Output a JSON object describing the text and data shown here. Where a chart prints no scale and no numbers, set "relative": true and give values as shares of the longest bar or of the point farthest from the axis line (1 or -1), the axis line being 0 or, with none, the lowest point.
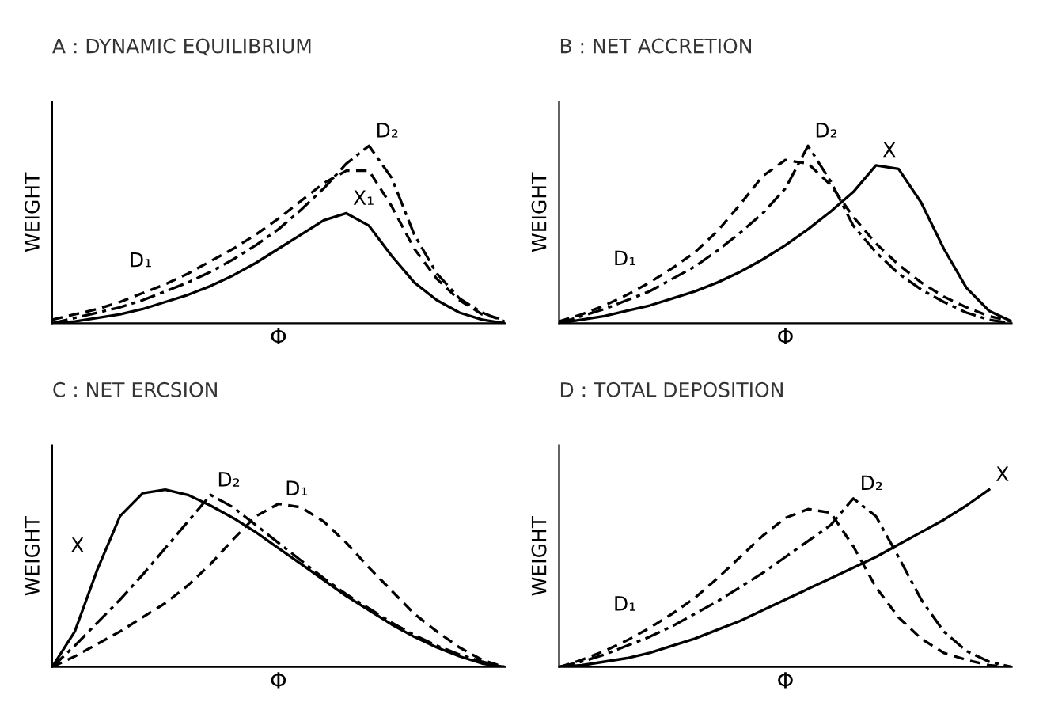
{
  "chart_data": [
    {
      "type": "line",
      "title": "A : DYNAMIC EQUILIBRIUM",
      "xlabel": "Φ",
      "ylabel": "WEIGHT",
      "relative": true,
      "tick_labels": false,
      "grid": false,
      "legend": false,
      "categories": [
        null,
        null,
        null,
        null,
        null,
        null,
        null,
        null,
        null,
        null,
        null,
        null,
        null,
        null,
        null,
        null,
        null,
        null,
        null,
        null,
        null
      ],
      "series": [
        {
          "name": "D₁",
          "color": "#000000",
          "line_style": "dashed",
          "values": [
            0.02,
            0.05,
            0.08,
            0.12,
            0.17,
            0.22,
            0.28,
            0.35,
            0.42,
            0.5,
            0.59,
            0.69,
            0.79,
            0.86,
            0.86,
            0.66,
            0.42,
            0.25,
            0.13,
            0.05,
            0.02
          ]
        },
        {
          "name": "D₂",
          "color": "#000000",
          "line_style": "dashdot",
          "values": [
            0,
            0.03,
            0.06,
            0.09,
            0.13,
            0.18,
            0.23,
            0.29,
            0.36,
            0.44,
            0.53,
            0.64,
            0.76,
            0.9,
            1.0,
            0.82,
            0.5,
            0.28,
            0.14,
            0.06,
            0.01
          ]
        },
        {
          "name": "X₁",
          "color": "#000000",
          "line_style": "solid",
          "values": [
            0,
            0.01,
            0.03,
            0.05,
            0.08,
            0.12,
            0.16,
            0.21,
            0.27,
            0.34,
            0.42,
            0.5,
            0.58,
            0.62,
            0.55,
            0.38,
            0.23,
            0.13,
            0.06,
            0.02,
            0
          ]
        }
      ]
    },
    {
      "type": "line",
      "title": "B : NET ACCRETION",
      "xlabel": "Φ",
      "ylabel": "WEIGHT",
      "relative": true,
      "tick_labels": false,
      "grid": false,
      "legend": false,
      "categories": [
        null,
        null,
        null,
        null,
        null,
        null,
        null,
        null,
        null,
        null,
        null,
        null,
        null,
        null,
        null,
        null,
        null,
        null,
        null,
        null,
        null
      ],
      "series": [
        {
          "name": "D₁",
          "color": "#000000",
          "line_style": "dashed",
          "values": [
            0.01,
            0.05,
            0.1,
            0.16,
            0.23,
            0.31,
            0.4,
            0.52,
            0.67,
            0.83,
            0.92,
            0.9,
            0.78,
            0.6,
            0.45,
            0.33,
            0.23,
            0.15,
            0.09,
            0.04,
            0.01
          ]
        },
        {
          "name": "D₂",
          "color": "#000000",
          "line_style": "dashdot",
          "values": [
            0,
            0.04,
            0.08,
            0.13,
            0.18,
            0.25,
            0.32,
            0.41,
            0.51,
            0.62,
            0.76,
            1.0,
            0.8,
            0.55,
            0.4,
            0.28,
            0.19,
            0.12,
            0.06,
            0.02,
            0
          ]
        },
        {
          "name": "X",
          "color": "#000000",
          "line_style": "solid",
          "values": [
            0,
            0.02,
            0.04,
            0.07,
            0.1,
            0.14,
            0.18,
            0.23,
            0.29,
            0.36,
            0.44,
            0.53,
            0.63,
            0.74,
            0.89,
            0.87,
            0.68,
            0.42,
            0.2,
            0.07,
            0.01
          ]
        }
      ]
    },
    {
      "type": "line",
      "title": "C : NET ERCSION",
      "xlabel": "Φ",
      "ylabel": "WEIGHT",
      "relative": true,
      "tick_labels": false,
      "grid": false,
      "legend": false,
      "categories": [
        null,
        null,
        null,
        null,
        null,
        null,
        null,
        null,
        null,
        null,
        null,
        null,
        null,
        null,
        null,
        null,
        null,
        null,
        null,
        null,
        null
      ],
      "series": [
        {
          "name": "X",
          "color": "#000000",
          "line_style": "solid",
          "values": [
            0,
            0.2,
            0.55,
            0.85,
            0.98,
            1.0,
            0.97,
            0.91,
            0.84,
            0.76,
            0.67,
            0.58,
            0.49,
            0.4,
            0.32,
            0.24,
            0.17,
            0.11,
            0.06,
            0.02,
            0
          ]
        },
        {
          "name": "D₂",
          "color": "#000000",
          "line_style": "dashdot",
          "values": [
            0,
            0.12,
            0.25,
            0.38,
            0.52,
            0.67,
            0.82,
            0.97,
            0.9,
            0.8,
            0.7,
            0.6,
            0.5,
            0.41,
            0.33,
            0.25,
            0.18,
            0.12,
            0.07,
            0.03,
            0
          ]
        },
        {
          "name": "D₁",
          "color": "#000000",
          "line_style": "dashed",
          "values": [
            0,
            0.06,
            0.13,
            0.2,
            0.28,
            0.36,
            0.46,
            0.58,
            0.72,
            0.85,
            0.92,
            0.9,
            0.82,
            0.7,
            0.56,
            0.43,
            0.3,
            0.2,
            0.11,
            0.04,
            0
          ]
        }
      ]
    },
    {
      "type": "line",
      "title": "D : TOTAL DEPOSITION",
      "xlabel": "Φ",
      "ylabel": "WEIGHT",
      "relative": true,
      "tick_labels": false,
      "grid": false,
      "legend": false,
      "categories": [
        null,
        null,
        null,
        null,
        null,
        null,
        null,
        null,
        null,
        null,
        null,
        null,
        null,
        null,
        null,
        null,
        null,
        null,
        null,
        null,
        null
      ],
      "series": [
        {
          "name": "D₁",
          "color": "#000000",
          "line_style": "dashed",
          "values": [
            0,
            0.04,
            0.09,
            0.15,
            0.22,
            0.3,
            0.39,
            0.5,
            0.62,
            0.74,
            0.84,
            0.89,
            0.87,
            0.68,
            0.45,
            0.28,
            0.16,
            0.08,
            0.04,
            0.01,
            0
          ]
        },
        {
          "name": "D₂",
          "color": "#000000",
          "line_style": "dashdot",
          "values": [
            0,
            0.03,
            0.07,
            0.12,
            0.17,
            0.23,
            0.3,
            0.37,
            0.45,
            0.53,
            0.62,
            0.71,
            0.8,
            0.95,
            0.85,
            0.62,
            0.38,
            0.2,
            0.09,
            0.03,
            0
          ]
        },
        {
          "name": "X",
          "color": "#000000",
          "line_style": "solid",
          "values": [
            0,
            0.01,
            0.03,
            0.05,
            0.08,
            0.12,
            0.16,
            0.21,
            0.26,
            0.32,
            0.38,
            0.44,
            0.5,
            0.56,
            0.62,
            0.69,
            0.76,
            0.83,
            0.91,
            1.0,
            null
          ]
        }
      ]
    }
  ]
}
